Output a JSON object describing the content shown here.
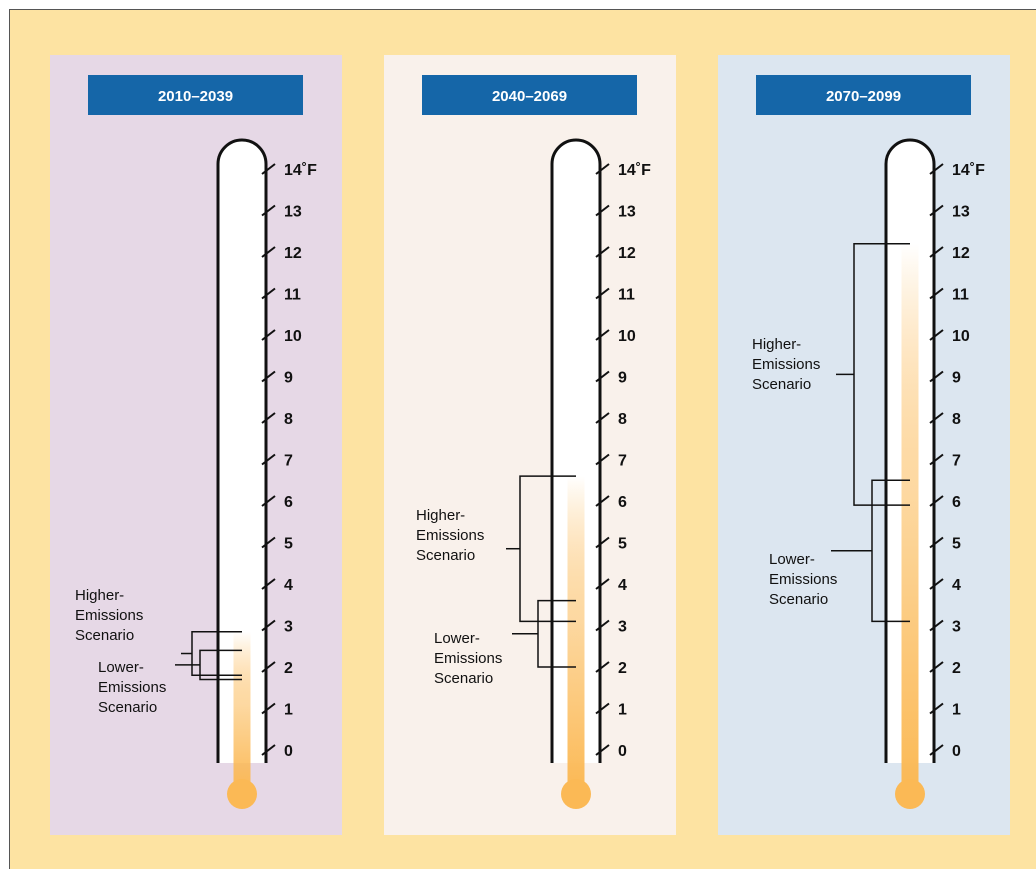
{
  "colors": {
    "outer_bg": "#FDE3A2",
    "header_bg": "#1566A8",
    "header_text": "#FFFFFF",
    "mercury": "#FBB955",
    "mercury_top": "#FFFFFF",
    "outline": "#111111"
  },
  "scale": {
    "min": 0,
    "max": 14,
    "ticks": [
      "0",
      "1",
      "2",
      "3",
      "4",
      "5",
      "6",
      "7",
      "8",
      "9",
      "10",
      "11",
      "12",
      "13",
      "14˚F"
    ]
  },
  "panels": [
    {
      "period": "2010–2039",
      "background": "#E6D8E6",
      "mercury_level": 2.85,
      "higher": {
        "label_lines": [
          "Higher-",
          "Emissions",
          "Scenario"
        ],
        "range": [
          1.8,
          2.85
        ]
      },
      "lower": {
        "label_lines": [
          "Lower-",
          "Emissions",
          "Scenario"
        ],
        "range": [
          1.7,
          2.4
        ]
      }
    },
    {
      "period": "2040–2069",
      "background": "#F9F1EB",
      "mercury_level": 6.6,
      "higher": {
        "label_lines": [
          "Higher-",
          "Emissions",
          "Scenario"
        ],
        "range": [
          3.1,
          6.6
        ]
      },
      "lower": {
        "label_lines": [
          "Lower-",
          "Emissions",
          "Scenario"
        ],
        "range": [
          2.0,
          3.6
        ]
      }
    },
    {
      "period": "2070–2099",
      "background": "#DCE6F0",
      "mercury_level": 12.2,
      "higher": {
        "label_lines": [
          "Higher-",
          "Emissions",
          "Scenario"
        ],
        "range": [
          5.9,
          12.2
        ]
      },
      "lower": {
        "label_lines": [
          "Lower-",
          "Emissions",
          "Scenario"
        ],
        "range": [
          3.1,
          6.5
        ]
      }
    }
  ]
}
